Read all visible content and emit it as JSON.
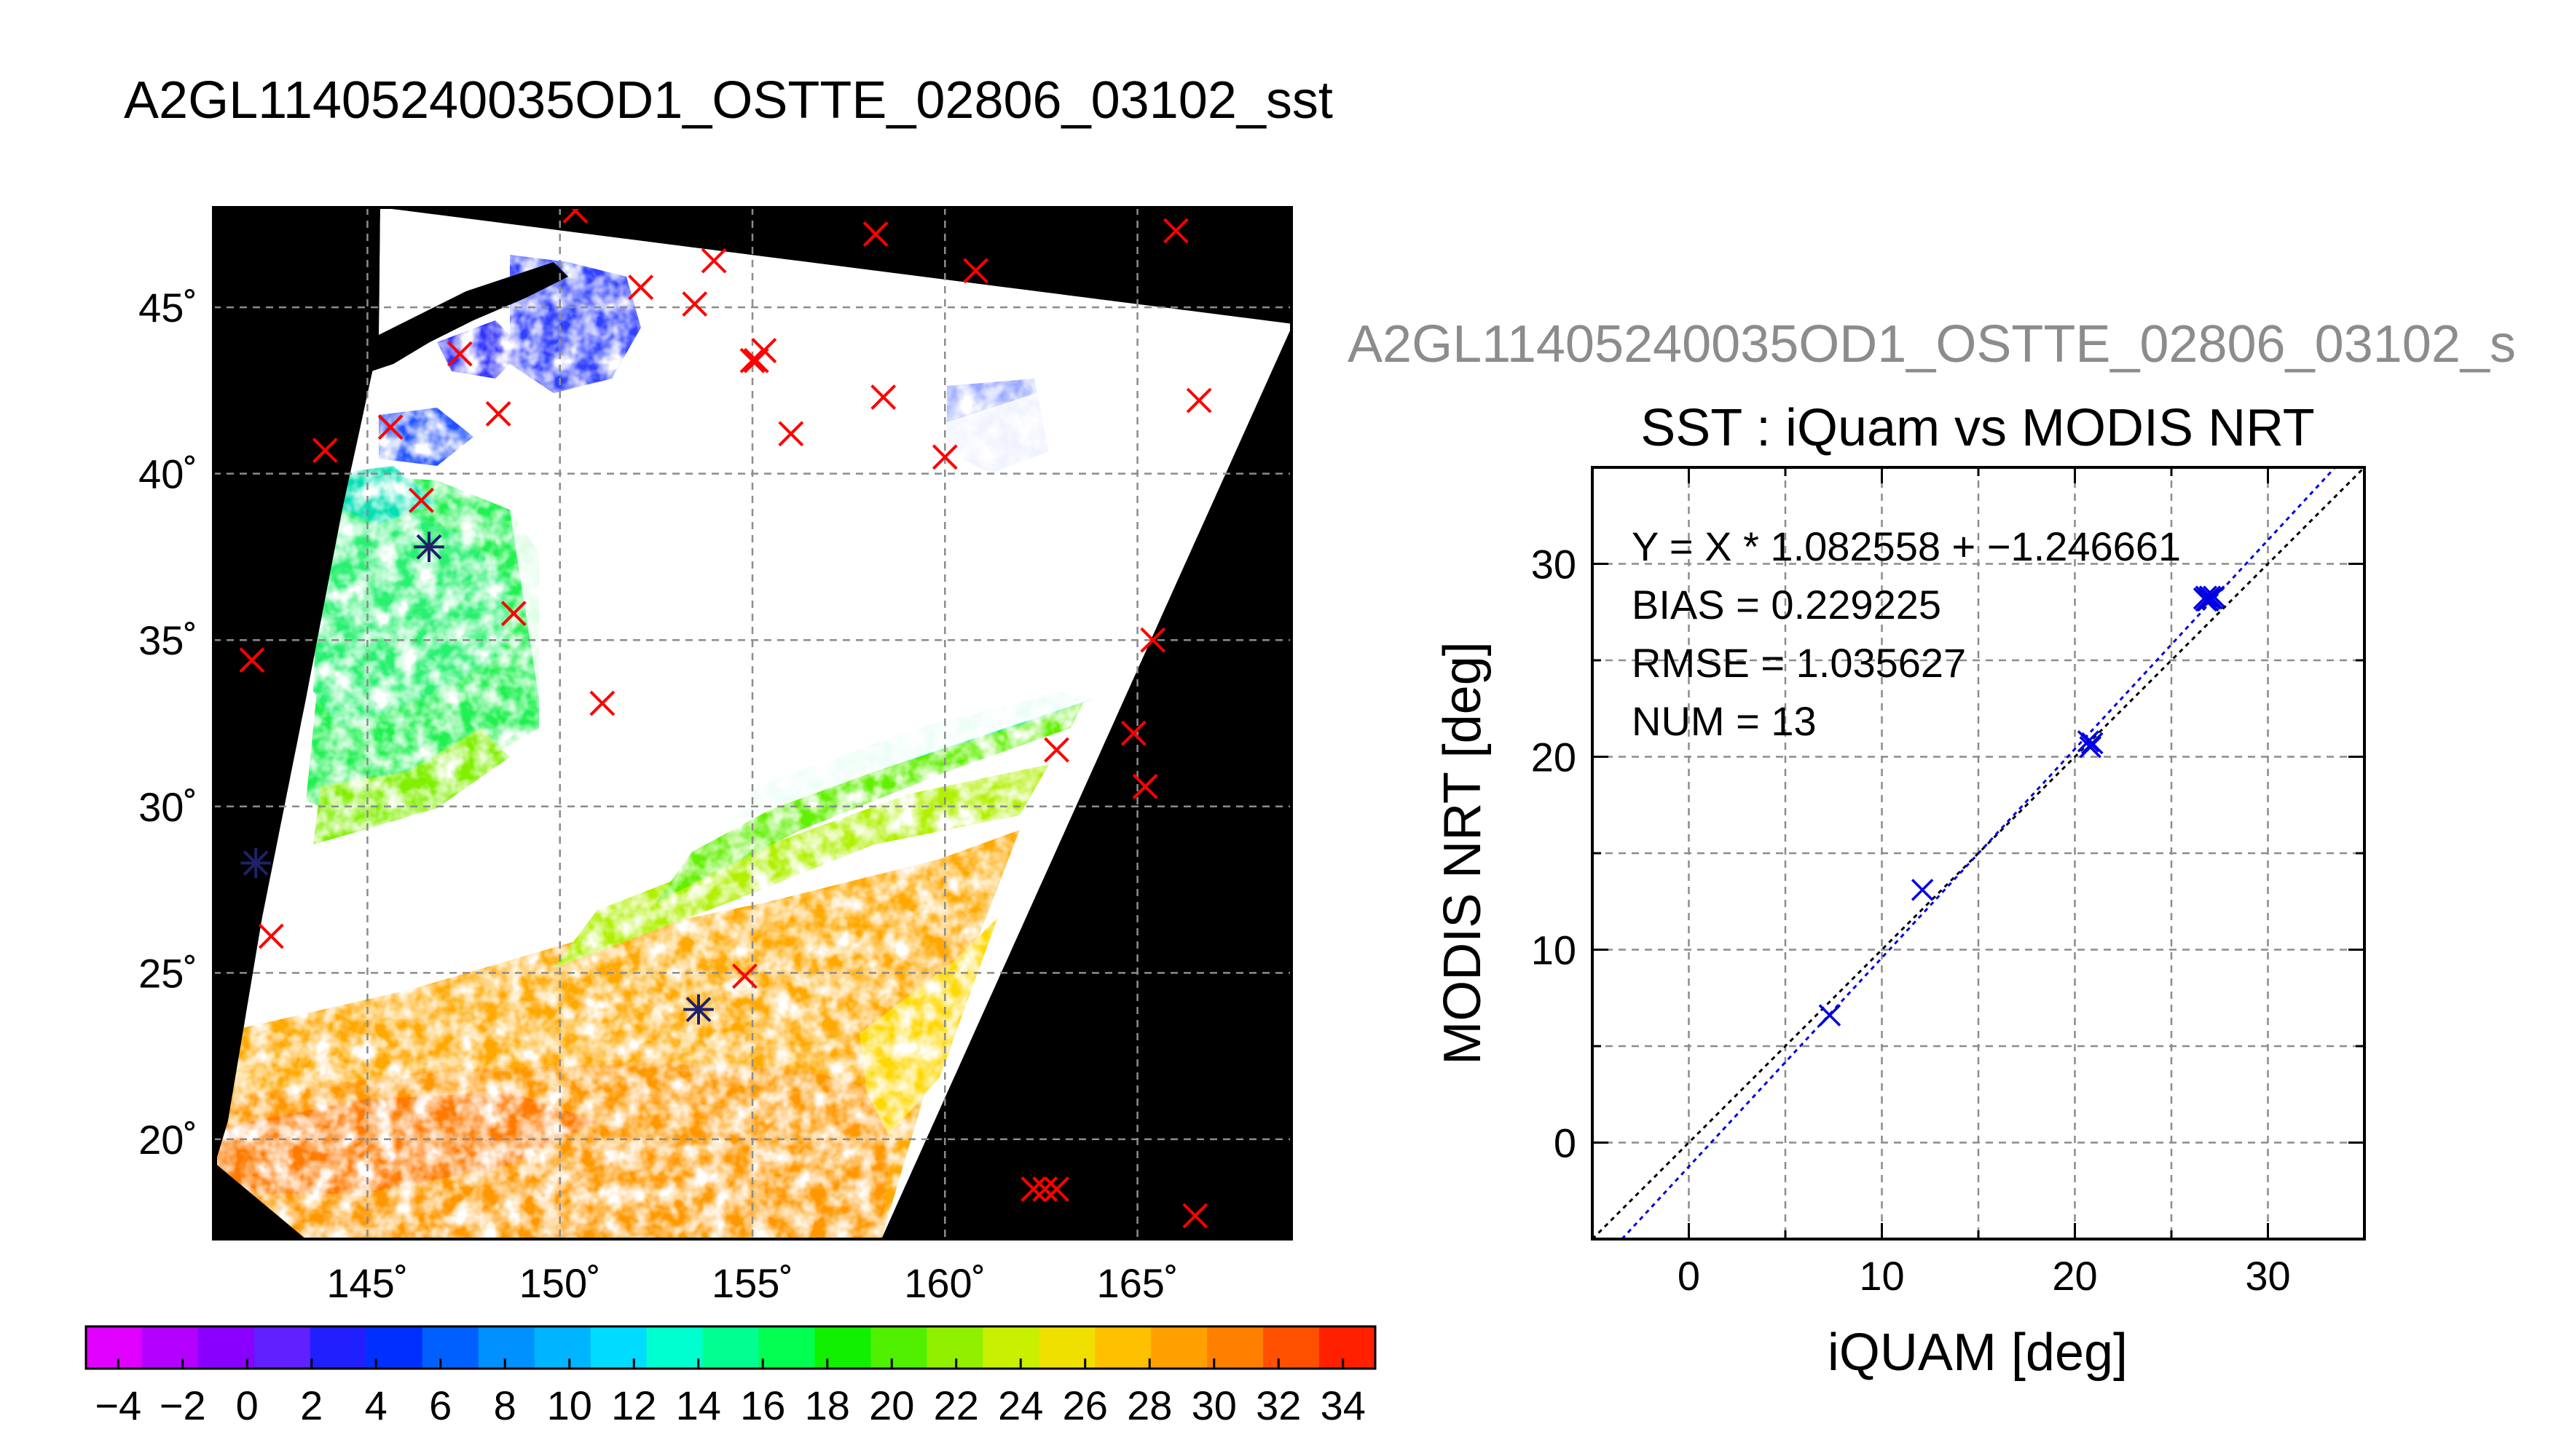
{
  "figure": {
    "main_title": "A2GL11405240035OD1_OSTTE_02806_03102_sst",
    "secondary_title": "A2GL11405240035OD1_OSTTE_02806_03102_s"
  },
  "chart_data": [
    {
      "type": "map",
      "lon_ticks": [
        "145˚",
        "150˚",
        "155˚",
        "160˚",
        "165˚"
      ],
      "lat_ticks": [
        "20˚",
        "25˚",
        "30˚",
        "35˚",
        "40˚",
        "45˚"
      ],
      "lon_values": [
        145,
        150,
        155,
        160,
        165
      ],
      "lat_values": [
        20,
        25,
        30,
        35,
        40,
        45
      ],
      "lon_range": [
        141,
        169
      ],
      "lat_range": [
        17,
        48
      ],
      "grid": true,
      "red_markers": [
        [
          150.4,
          47.9
        ],
        [
          158.2,
          47.2
        ],
        [
          160.8,
          46.1
        ],
        [
          166.0,
          47.3
        ],
        [
          154.0,
          46.4
        ],
        [
          152.1,
          45.6
        ],
        [
          153.5,
          45.1
        ],
        [
          147.4,
          43.6
        ],
        [
          155.0,
          43.4
        ],
        [
          155.3,
          43.7
        ],
        [
          155.1,
          43.4
        ],
        [
          158.4,
          42.3
        ],
        [
          166.6,
          42.2
        ],
        [
          148.4,
          41.8
        ],
        [
          156.0,
          41.2
        ],
        [
          145.6,
          41.4
        ],
        [
          143.9,
          40.7
        ],
        [
          160.0,
          40.5
        ],
        [
          146.4,
          39.2
        ],
        [
          148.8,
          35.8
        ],
        [
          142.0,
          34.4
        ],
        [
          151.1,
          33.1
        ],
        [
          165.4,
          35.0
        ],
        [
          164.9,
          32.2
        ],
        [
          162.9,
          31.7
        ],
        [
          165.2,
          30.6
        ],
        [
          142.5,
          26.1
        ],
        [
          154.8,
          24.9
        ],
        [
          162.3,
          18.5
        ],
        [
          162.6,
          18.5
        ],
        [
          162.9,
          18.5
        ],
        [
          166.5,
          17.7
        ]
      ],
      "blue_markers": [
        [
          146.6,
          37.8
        ],
        [
          142.1,
          28.3
        ],
        [
          153.6,
          23.9
        ]
      ],
      "colorbar": {
        "ticks": [
          "−4",
          "−2",
          "0",
          "2",
          "4",
          "6",
          "8",
          "10",
          "12",
          "14",
          "16",
          "18",
          "20",
          "22",
          "24",
          "26",
          "28",
          "30",
          "32",
          "34"
        ],
        "range": [
          -5,
          35
        ],
        "colors": [
          "#e000ff",
          "#b400ff",
          "#8a00ff",
          "#6020ff",
          "#2020ff",
          "#0030ff",
          "#0060ff",
          "#0090ff",
          "#00b4ff",
          "#00dcff",
          "#00ffd0",
          "#00ff90",
          "#00ff50",
          "#10f000",
          "#50f000",
          "#90f000",
          "#c8f000",
          "#f0e000",
          "#ffc000",
          "#ffa000",
          "#ff8000",
          "#ff5000",
          "#ff2000"
        ]
      }
    },
    {
      "type": "scatter",
      "title": "SST : iQuam vs MODIS NRT",
      "xlabel": "iQUAM [deg]",
      "ylabel": "MODIS NRT [deg]",
      "xlim": [
        -5,
        35
      ],
      "ylim": [
        -5,
        35
      ],
      "x_ticks": [
        "0",
        "10",
        "20",
        "30"
      ],
      "y_ticks": [
        "0",
        "10",
        "20",
        "30"
      ],
      "grid": true,
      "annotations": [
        "Y = X * 1.082558 + −1.246661",
        "BIAS = 0.229225",
        "RMSE = 1.035627",
        "NUM = 13"
      ],
      "fit": {
        "slope": 1.082558,
        "intercept": -1.246661
      },
      "points": [
        {
          "x": 7.3,
          "y": 6.6
        },
        {
          "x": 12.1,
          "y": 13.1
        },
        {
          "x": 20.7,
          "y": 20.8
        },
        {
          "x": 20.8,
          "y": 20.5
        },
        {
          "x": 20.9,
          "y": 20.7
        },
        {
          "x": 26.7,
          "y": 28.2
        },
        {
          "x": 26.8,
          "y": 28.3
        },
        {
          "x": 26.9,
          "y": 28.1
        },
        {
          "x": 27.0,
          "y": 28.3
        },
        {
          "x": 27.1,
          "y": 28.2
        },
        {
          "x": 26.8,
          "y": 28.1
        },
        {
          "x": 27.0,
          "y": 28.2
        },
        {
          "x": 27.2,
          "y": 28.3
        }
      ],
      "point_color": "#0000e0",
      "fit_color": "#0000e0",
      "identity_color": "#000000"
    }
  ]
}
